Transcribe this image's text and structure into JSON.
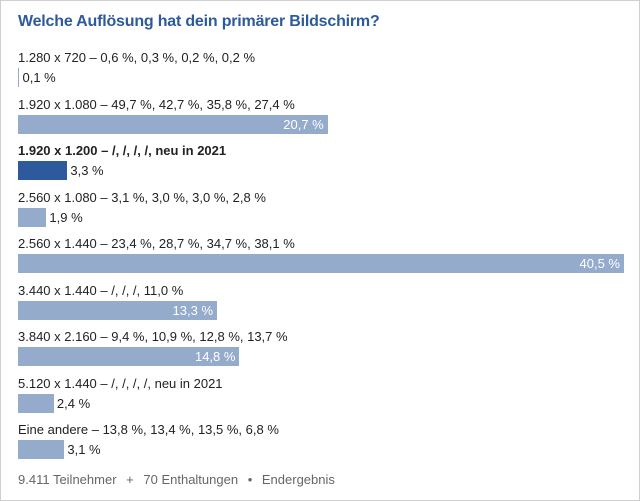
{
  "colors": {
    "title": "#2c5a9c",
    "bar": "#94abcc",
    "highlight": "#2c5a9c"
  },
  "chart_data": {
    "type": "bar",
    "orientation": "horizontal",
    "title": "Welche Auflösung hat dein primärer Bildschirm?",
    "unit": "%",
    "xlim": [
      0,
      40.5
    ],
    "grid": false,
    "items": [
      {
        "label": "1.280 x 720 – 0,6 %, 0,3 %, 0,2 %, 0,2 %",
        "value": 0.1,
        "value_label": "0,1 %",
        "highlight": false
      },
      {
        "label": "1.920 x 1.080 – 49,7 %, 42,7 %, 35,8 %, 27,4 %",
        "value": 20.7,
        "value_label": "20,7 %",
        "highlight": false
      },
      {
        "label": "1.920 x 1.200 – /, /, /, /, neu in 2021",
        "value": 3.3,
        "value_label": "3,3 %",
        "highlight": true
      },
      {
        "label": "2.560 x 1.080 – 3,1 %, 3,0 %, 3,0 %, 2,8 %",
        "value": 1.9,
        "value_label": "1,9 %",
        "highlight": false
      },
      {
        "label": "2.560 x 1.440 – 23,4 %, 28,7 %, 34,7 %, 38,1 %",
        "value": 40.5,
        "value_label": "40,5 %",
        "highlight": false
      },
      {
        "label": "3.440 x 1.440 – /, /, /, 11,0 %",
        "value": 13.3,
        "value_label": "13,3 %",
        "highlight": false
      },
      {
        "label": "3.840 x 2.160 – 9,4 %, 10,9 %, 12,8 %, 13,7 %",
        "value": 14.8,
        "value_label": "14,8 %",
        "highlight": false
      },
      {
        "label": "5.120 x 1.440 – /, /, /, /, neu in 2021",
        "value": 2.4,
        "value_label": "2,4 %",
        "highlight": false
      },
      {
        "label": "Eine andere – 13,8 %, 13,4 %, 13,5 %, 6,8 %",
        "value": 3.1,
        "value_label": "3,1 %",
        "highlight": false
      }
    ]
  },
  "footer": {
    "participants": "9.411 Teilnehmer",
    "sep1": "+",
    "abstentions": "70 Enthaltungen",
    "sep2": "•",
    "status": "Endergebnis"
  }
}
